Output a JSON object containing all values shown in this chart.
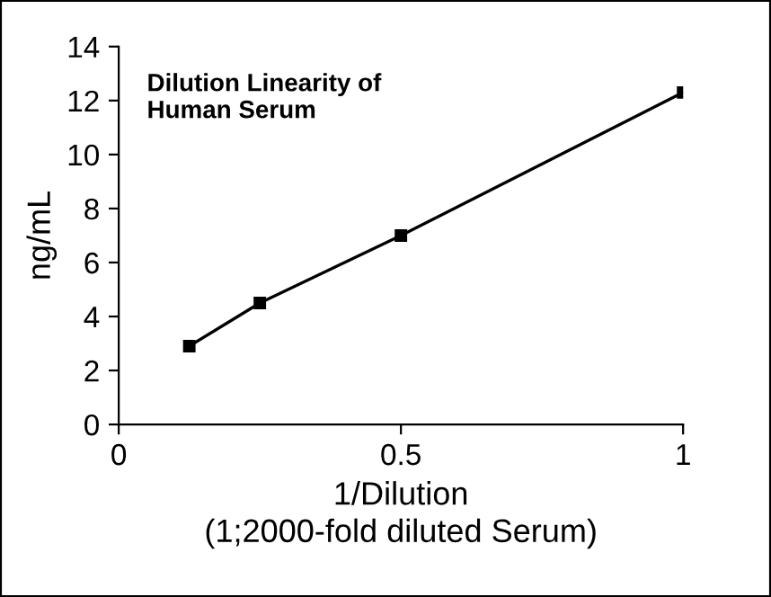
{
  "chart_data": {
    "type": "line",
    "title": "Dilution Linearity of\nHuman Serum",
    "xlabel": "1/Dilution\n(1;2000-fold diluted Serum)",
    "ylabel": "ng/mL",
    "x": [
      0.125,
      0.25,
      0.5,
      1
    ],
    "series": [
      {
        "color": "#000000",
        "values": [
          2.9,
          4.5,
          7.0,
          12.3
        ]
      }
    ],
    "xlim": [
      0,
      1
    ],
    "xticks": [
      0,
      0.5,
      1
    ],
    "ylim": [
      0,
      14
    ],
    "yticks": [
      0,
      2,
      4,
      6,
      8,
      10,
      12,
      14
    ],
    "marker": "square",
    "line_style": "solid",
    "grid": false,
    "legend": false
  }
}
